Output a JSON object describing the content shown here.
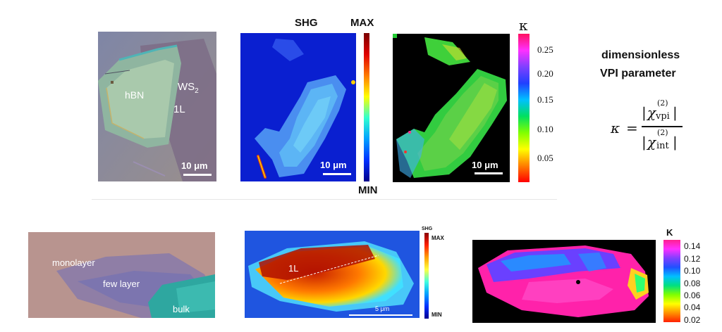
{
  "top": {
    "optical": {
      "label_hbn": "hBN",
      "label_ws2": "WS",
      "label_ws2_sub": "2",
      "label_1l": "1L",
      "scalebar": "10 μm"
    },
    "shg_map": {
      "title": "SHG",
      "max_label": "MAX",
      "min_label": "MIN",
      "scalebar": "10 μm"
    },
    "kappa_map": {
      "symbol": "κ",
      "scalebar": "10 μm",
      "ticks": [
        "0.25",
        "0.20",
        "0.15",
        "0.10",
        "0.05"
      ]
    },
    "definition": {
      "line1": "dimensionless",
      "line2": "VPI parameter",
      "kappa": "κ",
      "equals": "=",
      "chi": "χ",
      "sup": "(2)",
      "sub_num": "vpi",
      "sub_den": "int"
    }
  },
  "bottom": {
    "optical": {
      "label_monolayer": "monolayer",
      "label_few": "few layer",
      "label_bulk": "bulk"
    },
    "shg_map": {
      "title": "SHG",
      "max_label": "MAX",
      "min_label": "MIN",
      "label_1l": "1L",
      "scalebar": "5 μm"
    },
    "kappa_map": {
      "symbol": "K",
      "ticks": [
        "0.14",
        "0.12",
        "0.10",
        "0.08",
        "0.06",
        "0.04",
        "0.02"
      ]
    }
  },
  "colors": {
    "shg_min": "#0a1fd0",
    "shg_mid": "#3fb8f0",
    "kappa_green": "#22cc33",
    "optical_bg": "#8a8a9a"
  }
}
